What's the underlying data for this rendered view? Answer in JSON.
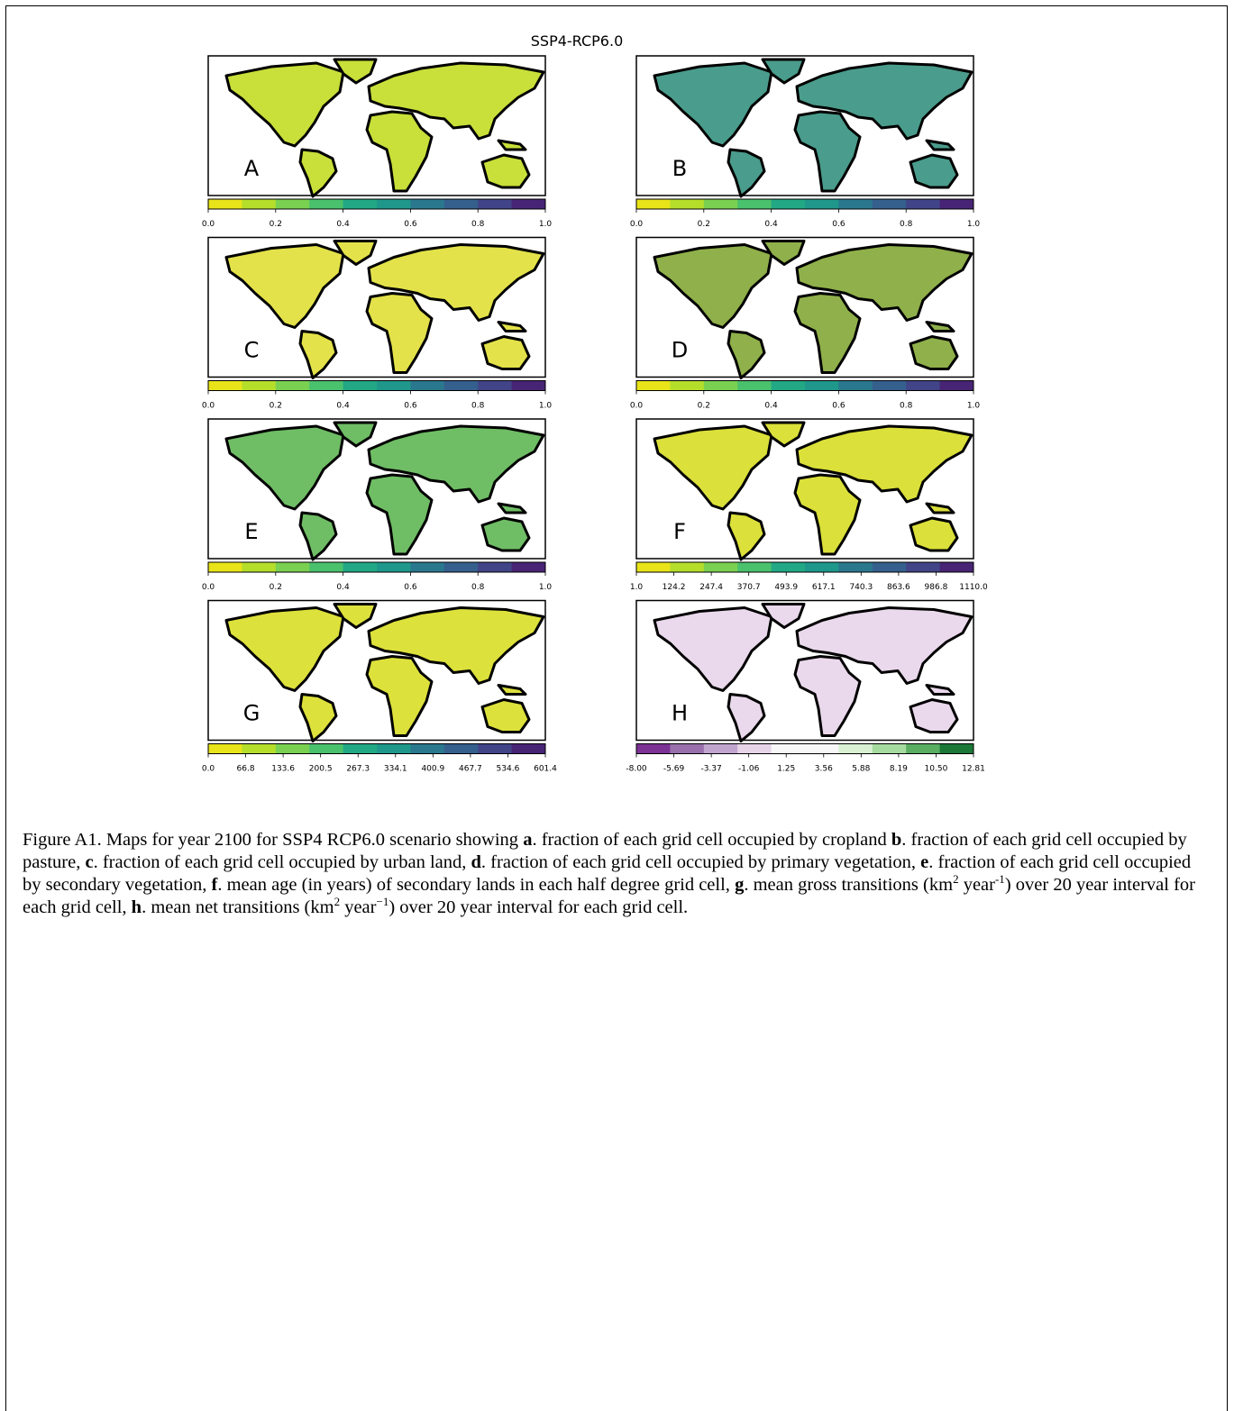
{
  "figure": {
    "title": "SSP4-RCP6.0",
    "panels": [
      {
        "label": "A",
        "colorbar_ticks": [
          "0.0",
          "0.2",
          "0.4",
          "0.6",
          "0.8",
          "1.0"
        ]
      },
      {
        "label": "B",
        "colorbar_ticks": [
          "0.0",
          "0.2",
          "0.4",
          "0.6",
          "0.8",
          "1.0"
        ]
      },
      {
        "label": "C",
        "colorbar_ticks": [
          "0.0",
          "0.2",
          "0.4",
          "0.6",
          "0.8",
          "1.0"
        ]
      },
      {
        "label": "D",
        "colorbar_ticks": [
          "0.0",
          "0.2",
          "0.4",
          "0.6",
          "0.8",
          "1.0"
        ]
      },
      {
        "label": "E",
        "colorbar_ticks": [
          "0.0",
          "0.2",
          "0.4",
          "0.6",
          "0.8",
          "1.0"
        ]
      },
      {
        "label": "F",
        "colorbar_ticks": [
          "1.0",
          "124.2",
          "247.4",
          "370.7",
          "493.9",
          "617.1",
          "740.3",
          "863.6",
          "986.8",
          "1110.0"
        ]
      },
      {
        "label": "G",
        "colorbar_ticks": [
          "0.0",
          "66.8",
          "133.6",
          "200.5",
          "267.3",
          "334.1",
          "400.9",
          "467.7",
          "534.6",
          "601.4"
        ]
      },
      {
        "label": "H",
        "colorbar_ticks": [
          "-8.00",
          "-5.69",
          "-3.37",
          "-1.06",
          "1.25",
          "3.56",
          "5.88",
          "8.19",
          "10.50",
          "12.81"
        ]
      }
    ]
  },
  "caption": [
    {
      "text": "Figure A1. Maps for year 2100 for SSP4 RCP6.0 scenario showing ",
      "style": "normal"
    },
    {
      "text": "a",
      "style": "bold"
    },
    {
      "text": ". fraction of each grid cell occupied by cropland ",
      "style": "normal"
    },
    {
      "text": "b",
      "style": "bold"
    },
    {
      "text": ". fraction of each grid cell occupied by pasture, ",
      "style": "normal"
    },
    {
      "text": "c",
      "style": "bold"
    },
    {
      "text": ". fraction of each grid cell occupied by urban land, ",
      "style": "normal"
    },
    {
      "text": "d",
      "style": "bold"
    },
    {
      "text": ". fraction of each grid cell occupied by primary vegetation, ",
      "style": "normal"
    },
    {
      "text": "e",
      "style": "bold"
    },
    {
      "text": ". fraction of each grid cell occupied by secondary vegetation, ",
      "style": "normal"
    },
    {
      "text": "f",
      "style": "bold"
    },
    {
      "text": ". mean age (in years) of secondary lands in each half degree grid cell, ",
      "style": "normal"
    },
    {
      "text": "g",
      "style": "bold"
    },
    {
      "text": ". mean gross transitions (km",
      "style": "normal"
    },
    {
      "text": "2",
      "style": "sup"
    },
    {
      "text": " year",
      "style": "normal"
    },
    {
      "text": "-1",
      "style": "sup"
    },
    {
      "text": ") over 20 year interval for each grid cell, ",
      "style": "normal"
    },
    {
      "text": "h",
      "style": "bold"
    },
    {
      "text": ". mean net transitions (km",
      "style": "normal"
    },
    {
      "text": "2",
      "style": "sup"
    },
    {
      "text": " year",
      "style": "normal"
    },
    {
      "text": "−1",
      "style": "sup"
    },
    {
      "text": ") over 20 year interval for each grid cell.",
      "style": "normal"
    }
  ]
}
